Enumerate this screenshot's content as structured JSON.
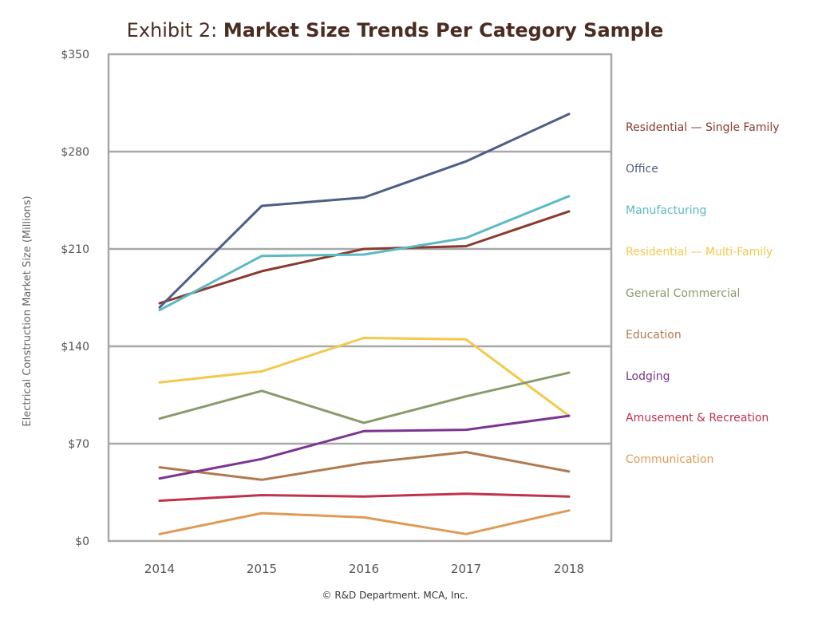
{
  "chart_data": {
    "type": "line",
    "title_prefix": "Exhibit 2: ",
    "title_main": "Market Size Trends Per Category Sample",
    "ylabel": "Electrical Construction Market Size (Millions)",
    "xlabel": "",
    "x": [
      "2014",
      "2015",
      "2016",
      "2017",
      "2018"
    ],
    "ylim": [
      0,
      350
    ],
    "yticks": [
      0,
      70,
      140,
      210,
      280,
      350
    ],
    "ytick_labels": [
      "$0",
      "$70",
      "$140",
      "$210",
      "$280",
      "$350"
    ],
    "gridlines": [
      70,
      140,
      210,
      280
    ],
    "legend_position": "right",
    "series": [
      {
        "name": "Residential — Single Family",
        "color": "#8B3A2E",
        "values": [
          171,
          194,
          210,
          212,
          237
        ]
      },
      {
        "name": "Office",
        "color": "#4D5F86",
        "values": [
          168,
          241,
          247,
          273,
          307
        ]
      },
      {
        "name": "Manufacturing",
        "color": "#5BB9C5",
        "values": [
          166,
          205,
          206,
          218,
          248
        ]
      },
      {
        "name": "Residential — Multi-Family",
        "color": "#F2C94C",
        "values": [
          114,
          122,
          146,
          145,
          90
        ]
      },
      {
        "name": "General Commercial",
        "color": "#8A9A6A",
        "values": [
          88,
          108,
          85,
          104,
          121
        ]
      },
      {
        "name": "Education",
        "color": "#B07A4F",
        "values": [
          53,
          44,
          56,
          64,
          50
        ]
      },
      {
        "name": "Lodging",
        "color": "#7B3590",
        "values": [
          45,
          59,
          79,
          80,
          90
        ]
      },
      {
        "name": "Amusement & Recreation",
        "color": "#C0334A",
        "values": [
          29,
          33,
          32,
          34,
          32
        ]
      },
      {
        "name": "Communication",
        "color": "#E09A55",
        "values": [
          5,
          20,
          17,
          5,
          22
        ]
      }
    ]
  },
  "footer": "© R&D Department. MCA, Inc."
}
